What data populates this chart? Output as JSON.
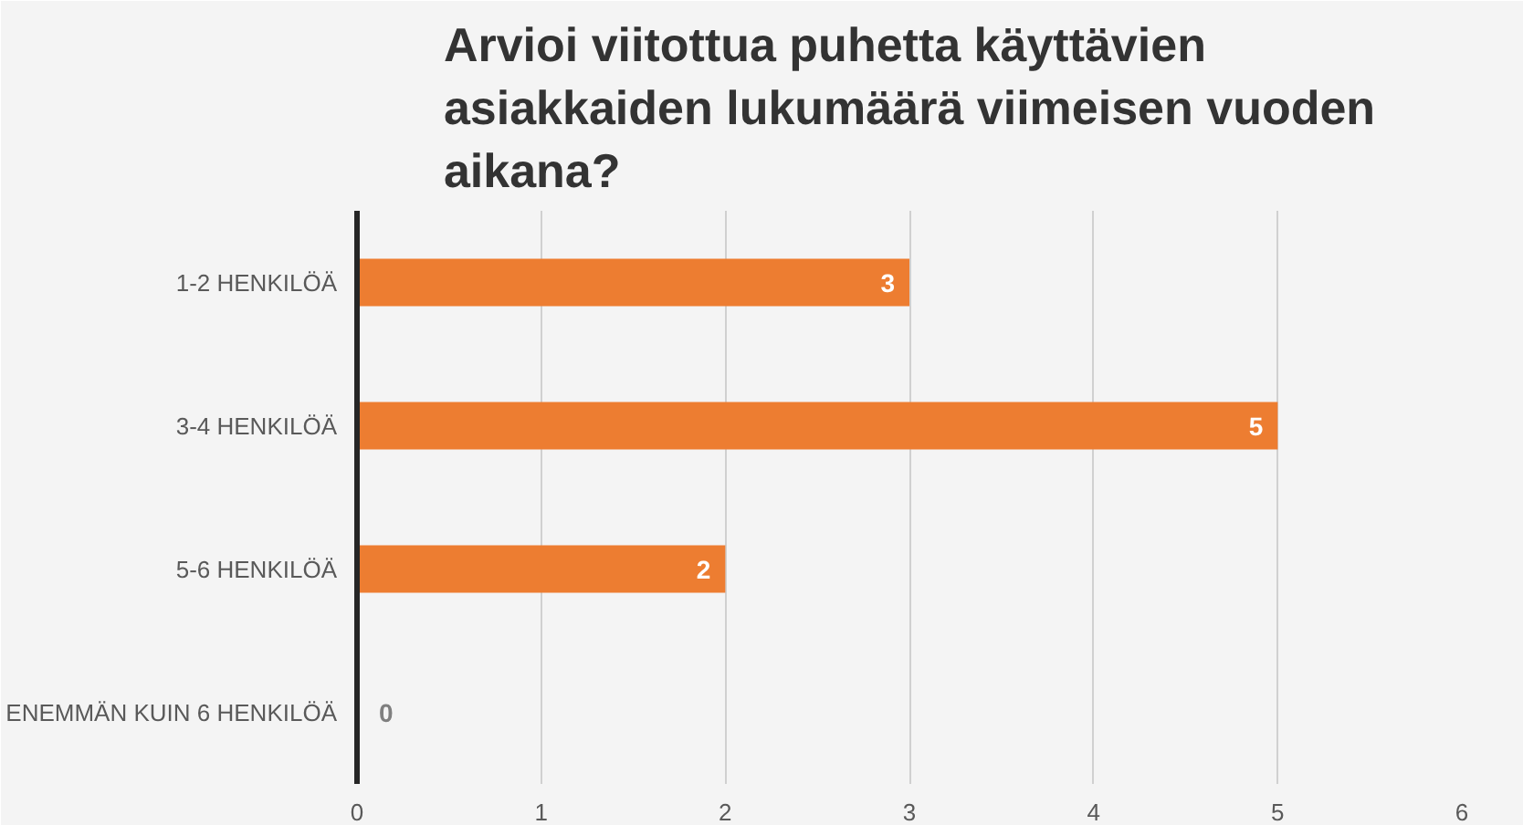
{
  "chart_data": {
    "type": "bar",
    "orientation": "horizontal",
    "title": "Arvioi viitottua puhetta käyttävien asiakkaiden lukumäärä viimeisen vuoden aikana?",
    "categories": [
      "1-2 HENKILÖÄ",
      "3-4 HENKILÖÄ",
      "5-6 HENKILÖÄ",
      "ENEMMÄN KUIN 6 HENKILÖÄ"
    ],
    "values": [
      3,
      5,
      2,
      0
    ],
    "color": "#ed7d31",
    "xlim": [
      0,
      6
    ],
    "xticks": [
      0,
      1,
      2,
      3,
      4,
      5,
      6
    ],
    "grid": "x",
    "data_labels": true
  }
}
